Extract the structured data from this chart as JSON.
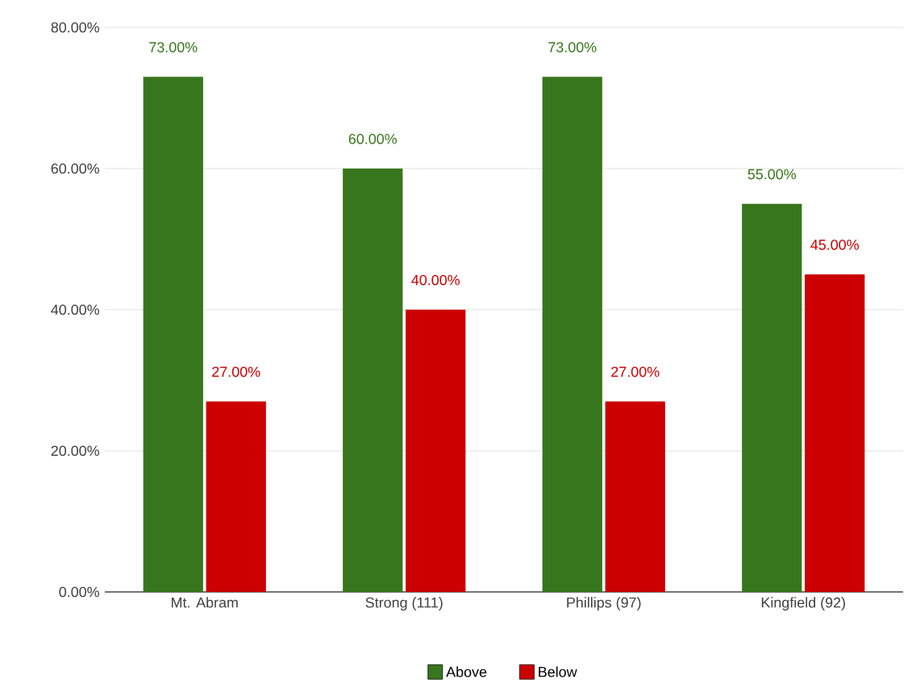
{
  "chart_data": {
    "type": "bar",
    "categories": [
      "Mt. Abram",
      "Strong (111)",
      "Phillips (97)",
      "Kingfield (92)"
    ],
    "series": [
      {
        "name": "Above",
        "color": "#38761d",
        "values": [
          73,
          60,
          73,
          55
        ],
        "value_labels": [
          "73.00%",
          "60.00%",
          "73.00%",
          "55.00%"
        ]
      },
      {
        "name": "Below",
        "color": "#cc0000",
        "values": [
          27,
          40,
          27,
          45
        ],
        "value_labels": [
          "27.00%",
          "40.00%",
          "27.00%",
          "45.00%"
        ]
      }
    ],
    "ylim": [
      0,
      80
    ],
    "yticks": [
      {
        "value": 0,
        "label": "0.00%"
      },
      {
        "value": 20,
        "label": "20.00%"
      },
      {
        "value": 40,
        "label": "40.00%"
      },
      {
        "value": 60,
        "label": "60.00%"
      },
      {
        "value": 80,
        "label": "80.00%"
      }
    ],
    "grid": "y",
    "legend": "bottom"
  }
}
